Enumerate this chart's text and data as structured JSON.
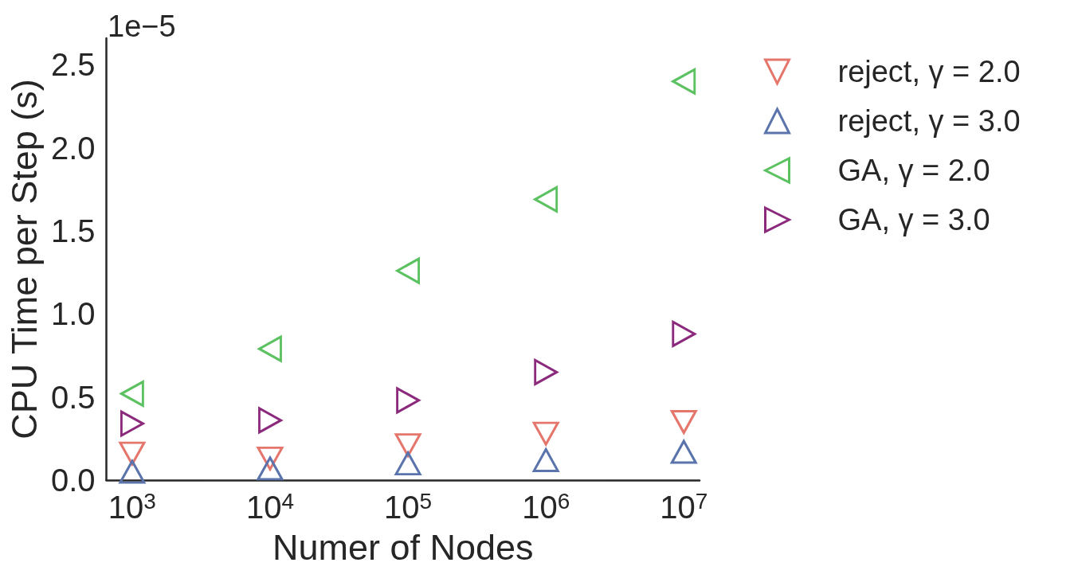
{
  "chart_data": {
    "type": "scatter",
    "xlabel": "Numer of Nodes",
    "ylabel": "CPU Time per Step (s)",
    "annotations": [
      "1e−5"
    ],
    "log": "x",
    "grid": false,
    "legend": "top right",
    "x": [
      1000,
      10000,
      100000,
      1000000,
      10000000
    ],
    "xlim": [
      650,
      13000000
    ],
    "xticks": [
      {
        "value": 1000,
        "label": "10$^{3}$"
      },
      {
        "value": 10000,
        "label": "10$^{4}$"
      },
      {
        "value": 100000,
        "label": "10$^{5}$"
      },
      {
        "value": 1000000,
        "label": "10$^{6}$"
      },
      {
        "value": 10000000,
        "label": "10$^{7}$"
      }
    ],
    "ylim": [
      0,
      2.66
    ],
    "yticks": [
      {
        "value": 0,
        "label": "0.0"
      },
      0.5,
      {
        "value": 1,
        "label": "1.0"
      },
      1.5,
      {
        "value": 2,
        "label": "2.0"
      },
      2.5
    ],
    "series": [
      {
        "name": "reject, γ = 2.0",
        "color": "#e5766c",
        "marker": "triangle-down",
        "values": [
          0.16,
          0.13,
          0.21,
          0.28,
          0.35
        ]
      },
      {
        "name": "reject, γ = 3.0",
        "color": "#5b74ab",
        "marker": "triangle-up",
        "values": [
          0.05,
          0.07,
          0.1,
          0.12,
          0.17
        ]
      },
      {
        "name": "GA, γ = 2.0",
        "color": "#5cc161",
        "marker": "triangle-left",
        "values": [
          0.52,
          0.79,
          1.26,
          1.69,
          2.4
        ]
      },
      {
        "name": "GA, γ = 3.0",
        "color": "#8b2a7c",
        "marker": "triangle-right",
        "values": [
          0.34,
          0.36,
          0.48,
          0.65,
          0.88
        ]
      }
    ]
  }
}
